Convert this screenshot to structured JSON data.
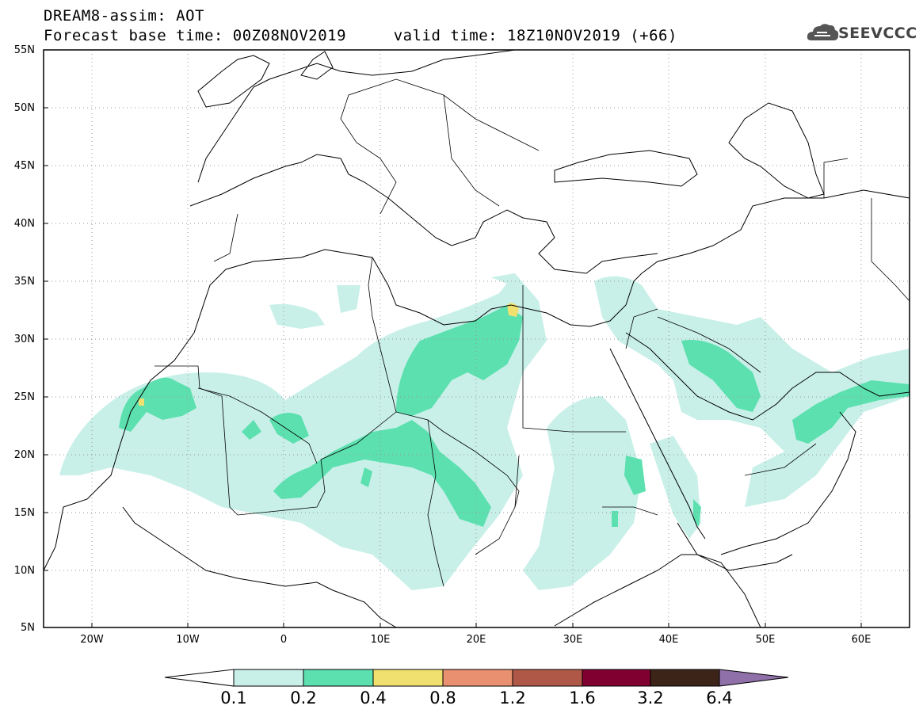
{
  "title": {
    "line1": "DREAM8-assim: AOT",
    "line2": "Forecast base time: 00Z08NOV2019     valid time: 18Z10NOV2019 (+66)"
  },
  "logo": {
    "text": "SEEVCCC",
    "icon": "cloud-icon"
  },
  "map": {
    "lat_ticks": [
      "55N",
      "50N",
      "45N",
      "40N",
      "35N",
      "30N",
      "25N",
      "20N",
      "15N",
      "10N",
      "5N"
    ],
    "lon_ticks": [
      "20W",
      "10W",
      "0",
      "10E",
      "20E",
      "30E",
      "40E",
      "50E",
      "60E"
    ],
    "lat_range": [
      5,
      55
    ],
    "lon_range": [
      -25,
      65
    ],
    "grid": "dotted",
    "colors": {
      "land_lines": "#000000",
      "grid": "#999999"
    }
  },
  "colorbar": {
    "labels": [
      "0.1",
      "0.2",
      "0.4",
      "0.8",
      "1.2",
      "1.6",
      "3.2",
      "6.4"
    ],
    "colors": [
      "#c8f0e8",
      "#5ce0b0",
      "#f0e070",
      "#e89070",
      "#b05848",
      "#800030",
      "#3c2418",
      "#9070a8"
    ],
    "under_color": "#ffffff",
    "over_color": "#9070a8"
  }
}
